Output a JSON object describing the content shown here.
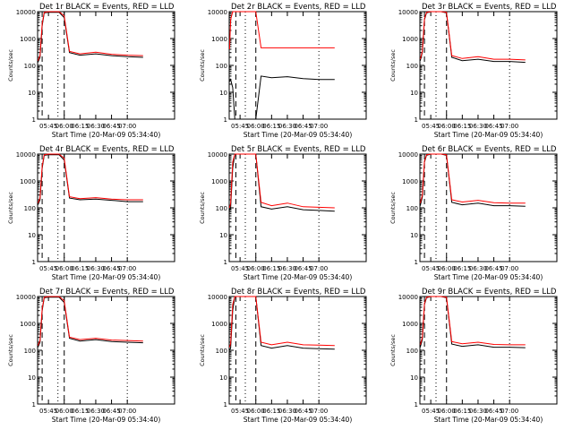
{
  "axis_labels": {
    "xlabel": "Start Time (20-Mar-09 05:34:40)",
    "ylabel": "Counts/sec",
    "y_ticks": [
      "1",
      "10",
      "100",
      "1000",
      "10000"
    ],
    "y_scale": "log",
    "ylim": [
      1,
      10000
    ],
    "xlim": [
      "05:34:40",
      "07:45"
    ]
  },
  "colors": {
    "events": "#000000",
    "lld": "#ff0000"
  },
  "chart_data": [
    {
      "type": "line",
      "title": "Det 1r BLACK = Events, RED = LLD",
      "x_ticks": [
        "05:45",
        "06:00",
        "06:15",
        "06:30",
        "06:45",
        "07:00"
      ],
      "x": [
        "05:35",
        "05:37",
        "05:39",
        "05:41",
        "05:45",
        "05:55",
        "06:00",
        "06:05",
        "06:15",
        "06:30",
        "06:45",
        "07:00",
        "07:15"
      ],
      "series": [
        {
          "name": "Events",
          "values": [
            130,
            200,
            3000,
            9000,
            9500,
            9500,
            6000,
            300,
            240,
            270,
            230,
            210,
            200
          ]
        },
        {
          "name": "LLD",
          "values": [
            150,
            230,
            3500,
            9500,
            10000,
            10000,
            7000,
            330,
            270,
            310,
            260,
            240,
            230
          ]
        }
      ],
      "dashed_marks": [
        "05:39",
        "06:00"
      ],
      "dotted_marks": [
        "05:54",
        "07:00"
      ]
    },
    {
      "type": "line",
      "title": "Det 2r BLACK = Events, RED = LLD",
      "x_ticks": [
        "05:45",
        "06:00",
        "06:15",
        "06:30",
        "06:45",
        "07:00"
      ],
      "x": [
        "05:35",
        "05:36",
        "05:38",
        "05:40",
        "05:45",
        "05:55",
        "06:00",
        "06:05",
        "06:15",
        "06:30",
        "06:45",
        "07:00",
        "07:15"
      ],
      "series": [
        {
          "name": "Events",
          "values": [
            25,
            30,
            15,
            0,
            0,
            0,
            0,
            40,
            35,
            38,
            32,
            30,
            30
          ]
        },
        {
          "name": "LLD",
          "values": [
            400,
            5000,
            10000,
            10000,
            10000,
            10000,
            10000,
            450,
            450,
            450,
            450,
            450,
            450
          ]
        }
      ],
      "dashed_marks": [
        "05:41",
        "06:00"
      ],
      "dotted_marks": [
        "05:50",
        "07:00"
      ]
    },
    {
      "type": "line",
      "title": "Det 3r BLACK = Events, RED = LLD",
      "x_ticks": [
        "05:45",
        "06:00",
        "06:15",
        "06:30",
        "06:45",
        "07:00"
      ],
      "x": [
        "05:35",
        "05:37",
        "05:39",
        "05:41",
        "05:45",
        "05:55",
        "06:00",
        "06:05",
        "06:15",
        "06:30",
        "06:45",
        "07:00",
        "07:15"
      ],
      "series": [
        {
          "name": "Events",
          "values": [
            150,
            300,
            5000,
            9000,
            10000,
            10000,
            9000,
            200,
            150,
            170,
            140,
            140,
            130
          ]
        },
        {
          "name": "LLD",
          "values": [
            170,
            330,
            5500,
            9500,
            10000,
            10000,
            9500,
            230,
            180,
            210,
            170,
            170,
            160
          ]
        }
      ],
      "dashed_marks": [
        "05:39",
        "06:00"
      ],
      "dotted_marks": [
        "05:50",
        "07:00"
      ]
    },
    {
      "type": "line",
      "title": "Det 4r BLACK = Events, RED = LLD",
      "x_ticks": [
        "05:45",
        "06:00",
        "06:15",
        "06:30",
        "06:45",
        "07:00"
      ],
      "x": [
        "05:35",
        "05:37",
        "05:39",
        "05:41",
        "05:45",
        "05:55",
        "06:00",
        "06:05",
        "06:15",
        "06:30",
        "06:45",
        "07:00",
        "07:15"
      ],
      "series": [
        {
          "name": "Events",
          "values": [
            130,
            200,
            3000,
            9000,
            9500,
            9500,
            6000,
            230,
            200,
            210,
            190,
            170,
            170
          ]
        },
        {
          "name": "LLD",
          "values": [
            150,
            230,
            3500,
            9500,
            10000,
            10000,
            7000,
            260,
            220,
            240,
            210,
            200,
            200
          ]
        }
      ],
      "dashed_marks": [
        "05:39",
        "06:00"
      ],
      "dotted_marks": [
        "05:54",
        "07:00"
      ]
    },
    {
      "type": "line",
      "title": "Det 5r BLACK = Events, RED = LLD",
      "x_ticks": [
        "05:45",
        "06:00",
        "06:15",
        "06:30",
        "06:45",
        "07:00"
      ],
      "x": [
        "05:35",
        "05:36",
        "05:38",
        "05:40",
        "05:45",
        "05:55",
        "06:00",
        "06:05",
        "06:15",
        "06:30",
        "06:45",
        "07:00",
        "07:15"
      ],
      "series": [
        {
          "name": "Events",
          "values": [
            80,
            100,
            3000,
            10000,
            10000,
            10000,
            10000,
            110,
            90,
            110,
            85,
            80,
            75
          ]
        },
        {
          "name": "LLD",
          "values": [
            100,
            150,
            5000,
            10000,
            10000,
            10000,
            10000,
            160,
            120,
            150,
            110,
            105,
            100
          ]
        }
      ],
      "dashed_marks": [
        "05:41",
        "06:00"
      ],
      "dotted_marks": [
        "05:50",
        "07:00"
      ]
    },
    {
      "type": "line",
      "title": "Det 6r BLACK = Events, RED = LLD",
      "x_ticks": [
        "05:45",
        "06:00",
        "06:15",
        "06:30",
        "06:45",
        "07:00"
      ],
      "x": [
        "05:35",
        "05:37",
        "05:39",
        "05:41",
        "05:45",
        "05:55",
        "06:00",
        "06:05",
        "06:15",
        "06:30",
        "06:45",
        "07:00",
        "07:15"
      ],
      "series": [
        {
          "name": "Events",
          "values": [
            120,
            250,
            5000,
            9000,
            10000,
            10000,
            9000,
            160,
            130,
            150,
            120,
            120,
            115
          ]
        },
        {
          "name": "LLD",
          "values": [
            150,
            300,
            5500,
            9500,
            10000,
            10000,
            9500,
            200,
            165,
            190,
            155,
            150,
            150
          ]
        }
      ],
      "dashed_marks": [
        "05:39",
        "06:00"
      ],
      "dotted_marks": [
        "05:50",
        "07:00"
      ]
    },
    {
      "type": "line",
      "title": "Det 7r BLACK = Events, RED = LLD",
      "x_ticks": [
        "05:45",
        "06:00",
        "06:15",
        "06:30",
        "06:45",
        "07:00"
      ],
      "x": [
        "05:35",
        "05:37",
        "05:39",
        "05:41",
        "05:45",
        "05:55",
        "06:00",
        "06:05",
        "06:15",
        "06:30",
        "06:45",
        "07:00",
        "07:15"
      ],
      "series": [
        {
          "name": "Events",
          "values": [
            130,
            200,
            3000,
            9000,
            9500,
            9500,
            6000,
            280,
            220,
            250,
            210,
            200,
            190
          ]
        },
        {
          "name": "LLD",
          "values": [
            150,
            230,
            3500,
            9500,
            10000,
            10000,
            7000,
            310,
            250,
            280,
            240,
            230,
            220
          ]
        }
      ],
      "dashed_marks": [
        "05:39",
        "06:00"
      ],
      "dotted_marks": [
        "05:54",
        "07:00"
      ]
    },
    {
      "type": "line",
      "title": "Det 8r BLACK = Events, RED = LLD",
      "x_ticks": [
        "05:45",
        "06:00",
        "06:15",
        "06:30",
        "06:45",
        "07:00"
      ],
      "x": [
        "05:35",
        "05:36",
        "05:38",
        "05:40",
        "05:45",
        "05:55",
        "06:00",
        "06:05",
        "06:15",
        "06:30",
        "06:45",
        "07:00",
        "07:15"
      ],
      "series": [
        {
          "name": "Events",
          "values": [
            100,
            120,
            3000,
            10000,
            10000,
            10000,
            10000,
            150,
            120,
            150,
            120,
            115,
            110
          ]
        },
        {
          "name": "LLD",
          "values": [
            130,
            180,
            5000,
            10000,
            10000,
            10000,
            10000,
            200,
            160,
            200,
            160,
            155,
            150
          ]
        }
      ],
      "dashed_marks": [
        "05:41",
        "06:00"
      ],
      "dotted_marks": [
        "05:50",
        "07:00"
      ]
    },
    {
      "type": "line",
      "title": "Det 9r BLACK = Events, RED = LLD",
      "x_ticks": [
        "05:45",
        "06:00",
        "06:15",
        "06:30",
        "06:45",
        "07:00"
      ],
      "x": [
        "05:35",
        "05:37",
        "05:39",
        "05:41",
        "05:45",
        "05:55",
        "06:00",
        "06:05",
        "06:15",
        "06:30",
        "06:45",
        "07:00",
        "07:15"
      ],
      "series": [
        {
          "name": "Events",
          "values": [
            130,
            250,
            5000,
            9000,
            10000,
            10000,
            9000,
            170,
            140,
            160,
            130,
            130,
            125
          ]
        },
        {
          "name": "LLD",
          "values": [
            160,
            300,
            5500,
            9500,
            10000,
            10000,
            9500,
            210,
            175,
            200,
            165,
            160,
            160
          ]
        }
      ],
      "dashed_marks": [
        "05:39",
        "06:00"
      ],
      "dotted_marks": [
        "05:50",
        "07:00"
      ]
    }
  ]
}
